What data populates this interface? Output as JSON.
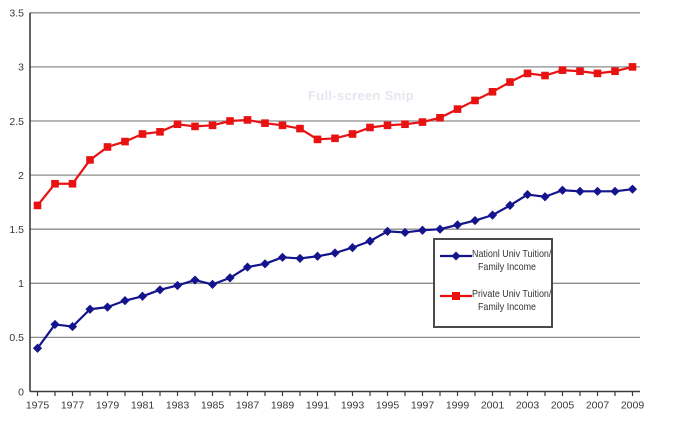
{
  "watermark": {
    "text": "Full-screen Snip"
  },
  "legend": {
    "items": [
      {
        "line1": "Nationl Univ Tuition/",
        "line2": "Family Income",
        "color": "#14148c",
        "marker": "diamond"
      },
      {
        "line1": "Private Univ Tuition/",
        "line2": "Family Income",
        "color": "#e81212",
        "marker": "square"
      }
    ]
  },
  "colors": {
    "background": "#ffffff",
    "grid": "#8c8c8c",
    "axis": "#3c3c3c",
    "label": "#3a3a3a",
    "legend_border": "#4a4a4a",
    "national_series": "#14148c",
    "private_series": "#e81212"
  },
  "chart_data": {
    "type": "line",
    "title": "",
    "xlabel": "",
    "ylabel": "",
    "grid": "horizontal",
    "legend_position": "inside-center-right",
    "ylim": [
      0,
      3.5
    ],
    "x": [
      1975,
      1976,
      1977,
      1978,
      1979,
      1980,
      1981,
      1982,
      1983,
      1984,
      1985,
      1986,
      1987,
      1988,
      1989,
      1990,
      1991,
      1992,
      1993,
      1994,
      1995,
      1996,
      1997,
      1998,
      1999,
      2000,
      2001,
      2002,
      2003,
      2004,
      2005,
      2006,
      2007,
      2008,
      2009
    ],
    "x_tick_labels": [
      "1975",
      "1977",
      "1979",
      "1981",
      "1983",
      "1985",
      "1987",
      "1989",
      "1991",
      "1993",
      "1995",
      "1997",
      "1999",
      "2001",
      "2003",
      "2005",
      "2007",
      "2009"
    ],
    "y_ticks": [
      0,
      0.5,
      1,
      1.5,
      2,
      2.5,
      3,
      3.5
    ],
    "y_tick_labels": [
      "0",
      "0.5",
      "1",
      "1.5",
      "2",
      "2.5",
      "3",
      "3.5"
    ],
    "series": [
      {
        "name": "Nationl Univ Tuition/Family Income",
        "color": "#14148c",
        "marker": "diamond",
        "values": [
          0.4,
          0.62,
          0.6,
          0.76,
          0.78,
          0.84,
          0.88,
          0.94,
          0.98,
          1.03,
          0.99,
          1.05,
          1.15,
          1.18,
          1.24,
          1.23,
          1.25,
          1.28,
          1.33,
          1.39,
          1.48,
          1.47,
          1.49,
          1.5,
          1.54,
          1.58,
          1.63,
          1.72,
          1.82,
          1.8,
          1.86,
          1.85,
          1.85,
          1.85,
          1.87
        ]
      },
      {
        "name": "Private Univ Tuition/Family Income",
        "color": "#e81212",
        "marker": "square",
        "values": [
          1.72,
          1.92,
          1.92,
          2.14,
          2.26,
          2.31,
          2.38,
          2.4,
          2.47,
          2.45,
          2.46,
          2.5,
          2.51,
          2.48,
          2.46,
          2.43,
          2.33,
          2.34,
          2.38,
          2.44,
          2.46,
          2.47,
          2.49,
          2.53,
          2.61,
          2.69,
          2.77,
          2.86,
          2.94,
          2.92,
          2.97,
          2.96,
          2.94,
          2.96,
          3.0
        ]
      }
    ]
  }
}
